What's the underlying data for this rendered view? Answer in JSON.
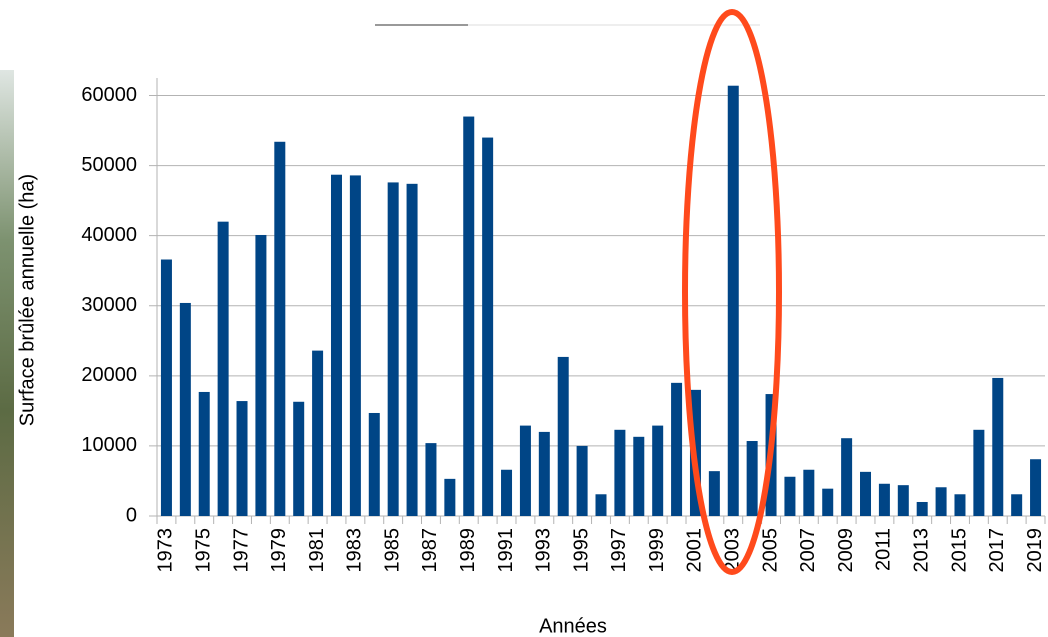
{
  "chart_data": {
    "type": "bar",
    "x_label": "Années",
    "y_label": "Surface brûlée annuelle (ha)",
    "categories": [
      "1973",
      null,
      "1975",
      null,
      "1977",
      null,
      "1979",
      null,
      "1981",
      null,
      "1983",
      null,
      "1985",
      null,
      "1987",
      null,
      "1989",
      null,
      "1991",
      null,
      "1993",
      null,
      "1995",
      null,
      "1997",
      null,
      "1999",
      null,
      "2001",
      null,
      "2003",
      null,
      "2005",
      null,
      "2007",
      null,
      "2009",
      null,
      "2011",
      null,
      "2013",
      null,
      "2015",
      null,
      "2017",
      null,
      "2019"
    ],
    "values": [
      36600,
      30400,
      17700,
      42000,
      16400,
      40100,
      53400,
      16300,
      23600,
      48700,
      48600,
      14700,
      47600,
      47400,
      10400,
      5300,
      57000,
      54000,
      6600,
      12900,
      12000,
      22700,
      10000,
      3100,
      12300,
      11300,
      12900,
      19000,
      18000,
      6400,
      61400,
      10700,
      17400,
      5600,
      6600,
      3900,
      11100,
      6300,
      4600,
      4400,
      2000,
      4100,
      3100,
      12300,
      19700,
      3100,
      8100
    ],
    "color": "#004586",
    "ylim": [
      0,
      62500
    ],
    "yticks": [
      0,
      10000,
      20000,
      30000,
      40000,
      50000,
      60000
    ],
    "grid": true
  }
}
